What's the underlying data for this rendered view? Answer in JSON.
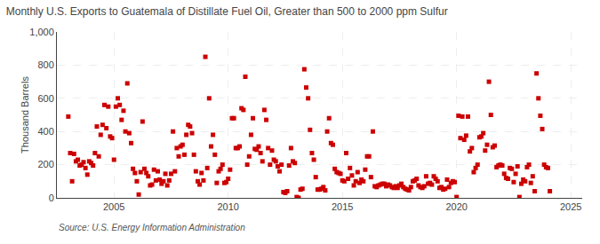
{
  "chart_data": {
    "type": "scatter",
    "title": "Monthly U.S. Exports to Guatemala of Distillate Fuel Oil, Greater than 500 to 2000 ppm Sulfur",
    "ylabel": "Thousand Barrels",
    "annotations": [
      "Source: U.S. Energy Information Administration"
    ],
    "color": "#cc0000",
    "marker": "square",
    "grid": true,
    "xlim": [
      2002.5,
      2025.5
    ],
    "ylim": [
      0,
      1000
    ],
    "xticks": [
      2005,
      2010,
      2015,
      2020,
      2025
    ],
    "yticks": [
      0,
      200,
      400,
      600,
      800,
      {
        "value": 1000,
        "label": "1,000"
      }
    ],
    "x": [
      2003.0,
      2003.083,
      2003.167,
      2003.25,
      2003.333,
      2003.417,
      2003.5,
      2003.583,
      2003.667,
      2003.75,
      2003.833,
      2003.917,
      2004.0,
      2004.083,
      2004.167,
      2004.25,
      2004.333,
      2004.417,
      2004.5,
      2004.583,
      2004.667,
      2004.75,
      2004.833,
      2004.917,
      2005.0,
      2005.083,
      2005.167,
      2005.25,
      2005.333,
      2005.417,
      2005.5,
      2005.583,
      2005.667,
      2005.75,
      2005.833,
      2005.917,
      2006.0,
      2006.083,
      2006.167,
      2006.25,
      2006.333,
      2006.417,
      2006.5,
      2006.583,
      2006.667,
      2006.75,
      2006.833,
      2006.917,
      2007.0,
      2007.083,
      2007.167,
      2007.25,
      2007.333,
      2007.417,
      2007.5,
      2007.583,
      2007.667,
      2007.75,
      2007.833,
      2007.917,
      2008.0,
      2008.083,
      2008.167,
      2008.25,
      2008.333,
      2008.417,
      2008.5,
      2008.583,
      2008.667,
      2008.75,
      2008.833,
      2008.917,
      2009.0,
      2009.083,
      2009.167,
      2009.25,
      2009.333,
      2009.417,
      2009.5,
      2009.583,
      2009.667,
      2009.75,
      2009.833,
      2009.917,
      2010.0,
      2010.083,
      2010.167,
      2010.25,
      2010.333,
      2010.417,
      2010.5,
      2010.583,
      2010.667,
      2010.75,
      2010.833,
      2010.917,
      2011.0,
      2011.083,
      2011.167,
      2011.25,
      2011.333,
      2011.417,
      2011.5,
      2011.583,
      2011.667,
      2011.75,
      2011.833,
      2011.917,
      2012.0,
      2012.083,
      2012.167,
      2012.25,
      2012.333,
      2012.417,
      2012.5,
      2012.583,
      2012.667,
      2012.75,
      2012.833,
      2012.917,
      2013.0,
      2013.083,
      2013.167,
      2013.25,
      2013.333,
      2013.417,
      2013.5,
      2013.583,
      2013.667,
      2013.75,
      2013.833,
      2013.917,
      2014.0,
      2014.083,
      2014.167,
      2014.25,
      2014.333,
      2014.417,
      2014.5,
      2014.583,
      2014.667,
      2014.75,
      2014.833,
      2014.917,
      2015.0,
      2015.083,
      2015.167,
      2015.25,
      2015.333,
      2015.417,
      2015.5,
      2015.583,
      2015.667,
      2015.75,
      2015.833,
      2015.917,
      2016.0,
      2016.083,
      2016.167,
      2016.25,
      2016.333,
      2016.417,
      2016.5,
      2016.583,
      2016.667,
      2016.75,
      2016.833,
      2016.917,
      2017.0,
      2017.083,
      2017.167,
      2017.25,
      2017.333,
      2017.417,
      2017.5,
      2017.583,
      2017.667,
      2017.75,
      2017.833,
      2017.917,
      2018.0,
      2018.083,
      2018.167,
      2018.25,
      2018.333,
      2018.417,
      2018.5,
      2018.583,
      2018.667,
      2018.75,
      2018.833,
      2018.917,
      2019.0,
      2019.083,
      2019.167,
      2019.25,
      2019.333,
      2019.417,
      2019.5,
      2019.583,
      2019.667,
      2019.75,
      2019.833,
      2019.917,
      2020.0,
      2020.083,
      2020.167,
      2020.25,
      2020.333,
      2020.417,
      2020.5,
      2020.583,
      2020.667,
      2020.75,
      2020.833,
      2020.917,
      2021.0,
      2021.083,
      2021.167,
      2021.25,
      2021.333,
      2021.417,
      2021.5,
      2021.583,
      2021.667,
      2021.75,
      2021.833,
      2021.917,
      2022.0,
      2022.083,
      2022.167,
      2022.25,
      2022.333,
      2022.417,
      2022.5,
      2022.583,
      2022.667,
      2022.75,
      2022.833,
      2022.917,
      2023.0,
      2023.083,
      2023.167,
      2023.25,
      2023.333,
      2023.417,
      2023.5,
      2023.583,
      2023.667,
      2023.75,
      2023.833,
      2023.917,
      2024.0,
      2024.083
    ],
    "values": [
      490,
      270,
      100,
      265,
      220,
      230,
      195,
      200,
      215,
      180,
      140,
      220,
      210,
      195,
      270,
      430,
      250,
      380,
      440,
      560,
      420,
      550,
      370,
      360,
      230,
      550,
      600,
      560,
      470,
      525,
      400,
      690,
      390,
      330,
      175,
      150,
      100,
      20,
      155,
      460,
      175,
      150,
      130,
      75,
      80,
      170,
      105,
      160,
      110,
      85,
      100,
      145,
      75,
      105,
      145,
      400,
      160,
      300,
      250,
      310,
      320,
      260,
      380,
      440,
      430,
      390,
      260,
      160,
      100,
      80,
      150,
      105,
      850,
      180,
      600,
      310,
      380,
      260,
      90,
      160,
      175,
      200,
      90,
      95,
      115,
      170,
      480,
      480,
      300,
      300,
      310,
      540,
      530,
      730,
      200,
      250,
      380,
      480,
      295,
      290,
      310,
      270,
      220,
      530,
      470,
      300,
      200,
      285,
      230,
      220,
      190,
      160,
      200,
      35,
      30,
      40,
      195,
      300,
      220,
      210,
      5,
      0,
      50,
      55,
      775,
      665,
      600,
      410,
      270,
      230,
      125,
      50,
      50,
      55,
      65,
      45,
      400,
      480,
      330,
      320,
      175,
      155,
      150,
      145,
      105,
      100,
      270,
      115,
      180,
      135,
      75,
      100,
      155,
      90,
      110,
      100,
      170,
      250,
      250,
      125,
      400,
      70,
      65,
      75,
      80,
      85,
      85,
      70,
      80,
      75,
      65,
      60,
      70,
      60,
      75,
      85,
      65,
      55,
      50,
      45,
      65,
      100,
      105,
      115,
      75,
      65,
      60,
      70,
      130,
      85,
      90,
      80,
      130,
      115,
      100,
      60,
      65,
      50,
      55,
      110,
      65,
      90,
      100,
      95,
      5,
      495,
      360,
      490,
      350,
      375,
      490,
      280,
      300,
      155,
      180,
      200,
      365,
      370,
      390,
      285,
      320,
      700,
      500,
      305,
      315,
      185,
      195,
      200,
      195,
      145,
      120,
      115,
      180,
      175,
      95,
      145,
      190,
      5,
      85,
      110,
      100,
      185,
      200,
      90,
      130,
      40,
      750,
      600,
      495,
      415,
      200,
      185,
      180,
      40
    ]
  }
}
